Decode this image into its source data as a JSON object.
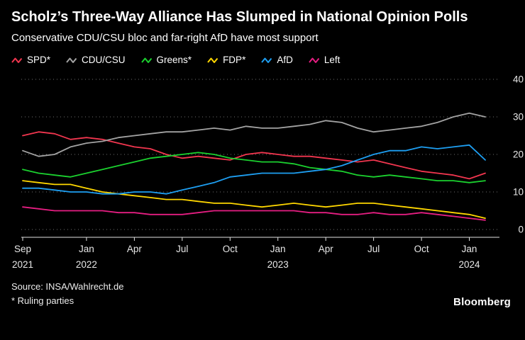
{
  "header": {
    "title": "Scholz’s Three-Way Alliance Has Slumped in National Opinion Polls",
    "subtitle": "Conservative CDU/CSU bloc and far-right AfD have most support"
  },
  "footer": {
    "source": "Source: INSA/Wahlrecht.de",
    "note": "* Ruling parties",
    "brand": "Bloomberg"
  },
  "colors": {
    "background": "#000000",
    "grid": "#707070",
    "axis": "#e2e2e2",
    "text": "#ffffff"
  },
  "chart_data": {
    "type": "line",
    "title": "Scholz’s Three-Way Alliance Has Slumped in National Opinion Polls",
    "subtitle": "Conservative CDU/CSU bloc and far-right AfD have most support",
    "xlabel": "",
    "ylabel": "",
    "ylim": [
      0,
      40
    ],
    "yticks": [
      0,
      10,
      20,
      30,
      40
    ],
    "grid": "horizontal-dotted",
    "legend_position": "top",
    "y_axis_side": "right",
    "x_start": "Sep 2021",
    "x_end": "Feb 2024",
    "x_step": "monthly",
    "xticks": [
      {
        "i": 0,
        "label": "Sep",
        "year": "2021"
      },
      {
        "i": 4,
        "label": "Jan",
        "year": "2022"
      },
      {
        "i": 7,
        "label": "Apr"
      },
      {
        "i": 10,
        "label": "Jul"
      },
      {
        "i": 13,
        "label": "Oct"
      },
      {
        "i": 16,
        "label": "Jan",
        "year": "2023"
      },
      {
        "i": 19,
        "label": "Apr"
      },
      {
        "i": 22,
        "label": "Jul"
      },
      {
        "i": 25,
        "label": "Oct"
      },
      {
        "i": 28,
        "label": "Jan",
        "year": "2024"
      }
    ],
    "series": [
      {
        "name": "SPD*",
        "color": "#f2364f",
        "values": [
          25,
          26,
          25.5,
          24,
          24.5,
          24,
          23,
          22,
          21.5,
          20,
          19,
          19.5,
          19,
          18.5,
          20,
          20.5,
          20,
          19.5,
          19.5,
          19,
          18.5,
          18,
          18.5,
          17.5,
          16.5,
          15.5,
          15,
          14.5,
          13.5,
          15
        ]
      },
      {
        "name": "CDU/CSU",
        "color": "#a3a3a3",
        "values": [
          21,
          19.5,
          20,
          22,
          23,
          23.5,
          24.5,
          25,
          25.5,
          26,
          26,
          26.5,
          27,
          26.5,
          27.5,
          27,
          27,
          27.5,
          28,
          29,
          28.5,
          27,
          26,
          26.5,
          27,
          27.5,
          28.5,
          30,
          31,
          30
        ]
      },
      {
        "name": "Greens*",
        "color": "#1bd12f",
        "values": [
          16,
          15,
          14.5,
          14,
          15,
          16,
          17,
          18,
          19,
          19.5,
          20,
          20.5,
          20,
          19,
          18.5,
          18,
          18,
          17.5,
          16.5,
          16,
          15.5,
          14.5,
          14,
          14.5,
          14,
          13.5,
          13,
          13,
          12.5,
          13
        ]
      },
      {
        "name": "FDP*",
        "color": "#ffd700",
        "values": [
          13,
          12.5,
          12,
          12,
          11,
          10,
          9.5,
          9,
          8.5,
          8,
          8,
          7.5,
          7,
          7,
          6.5,
          6,
          6.5,
          7,
          6.5,
          6,
          6.5,
          7,
          7,
          6.5,
          6,
          5.5,
          5,
          4.5,
          4,
          3
        ]
      },
      {
        "name": "AfD",
        "color": "#1e9ff2",
        "values": [
          11,
          11,
          10.5,
          10,
          10,
          9.5,
          9.5,
          10,
          10,
          9.5,
          10.5,
          11.5,
          12.5,
          14,
          14.5,
          15,
          15,
          15,
          15.5,
          16,
          17,
          18.5,
          20,
          21,
          21,
          22,
          21.5,
          22,
          22.5,
          18.5
        ]
      },
      {
        "name": "Left",
        "color": "#e61e82",
        "values": [
          6,
          5.5,
          5,
          5,
          5,
          5,
          4.5,
          4.5,
          4,
          4,
          4,
          4.5,
          5,
          5,
          5,
          5,
          5,
          5,
          4.5,
          4.5,
          4,
          4,
          4.5,
          4,
          4,
          4.5,
          4,
          3.5,
          3,
          2.5
        ]
      }
    ]
  }
}
